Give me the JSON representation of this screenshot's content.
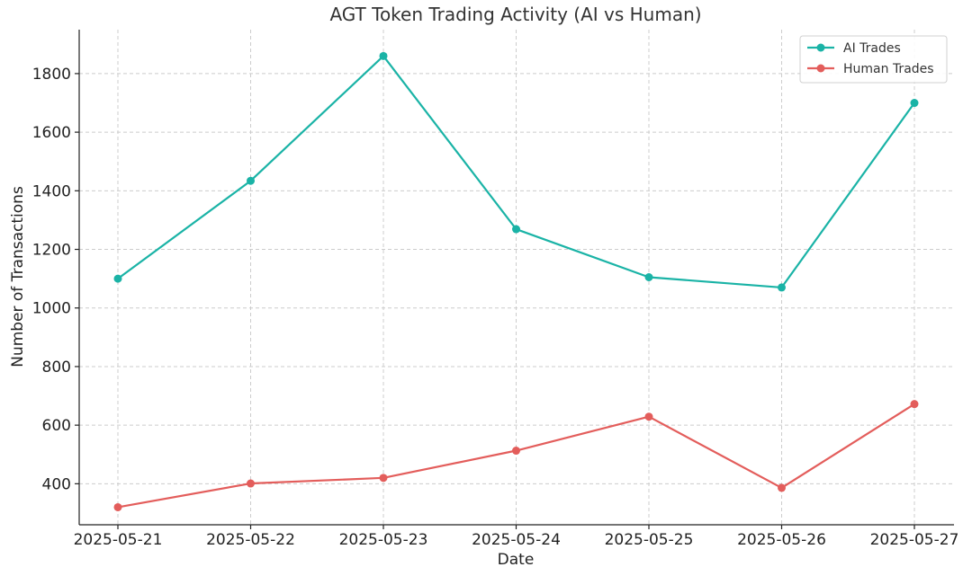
{
  "chart_data": {
    "type": "line",
    "title": "AGT Token Trading Activity (AI vs Human)",
    "xlabel": "Date",
    "ylabel": "Number of Transactions",
    "x": [
      "2025-05-21",
      "2025-05-22",
      "2025-05-23",
      "2025-05-24",
      "2025-05-25",
      "2025-05-26",
      "2025-05-27"
    ],
    "yticks": [
      400,
      600,
      800,
      1000,
      1200,
      1400,
      1600,
      1800
    ],
    "ylim": [
      260,
      1950
    ],
    "grid": true,
    "legend_position": "top-right",
    "series": [
      {
        "name": "AI Trades",
        "color": "#1ab3a6",
        "values": [
          1100,
          1434,
          1860,
          1269,
          1105,
          1070,
          1700
        ]
      },
      {
        "name": "Human Trades",
        "color": "#e35d5b",
        "values": [
          320,
          401,
          420,
          513,
          629,
          386,
          672
        ]
      }
    ]
  }
}
